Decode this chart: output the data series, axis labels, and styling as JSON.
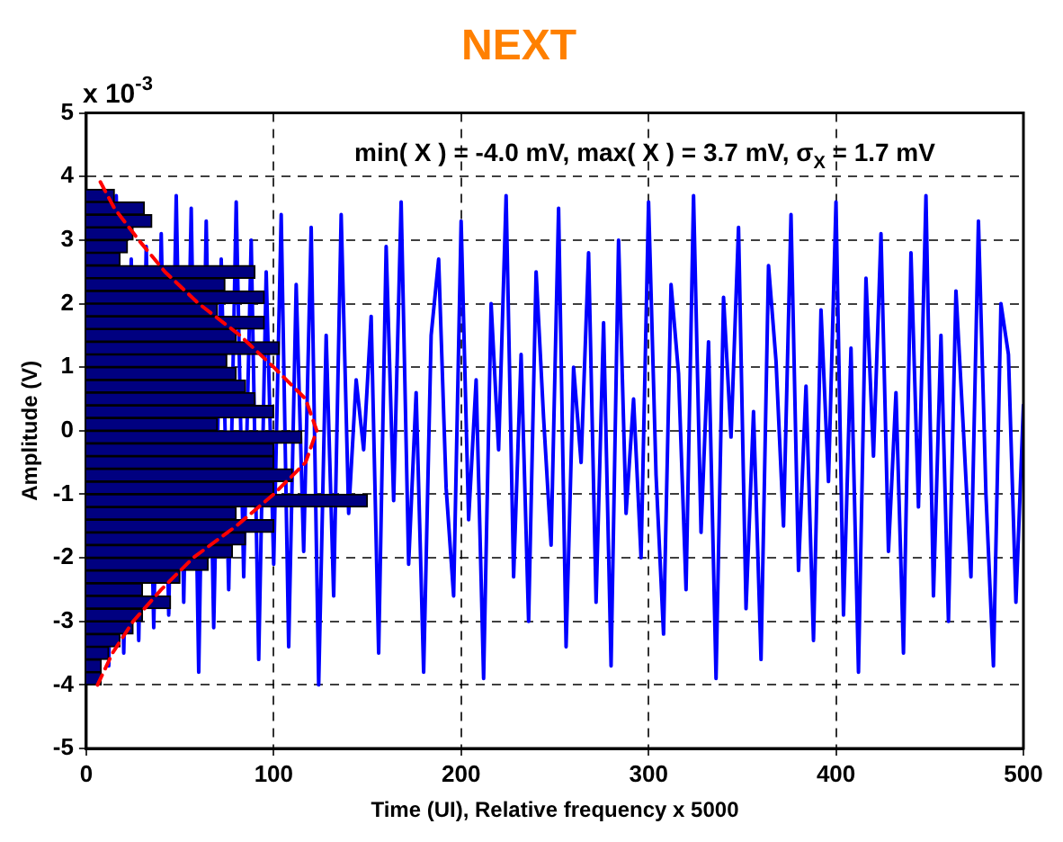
{
  "chart_data": [
    {
      "type": "line",
      "title": "NEXT",
      "xlabel": "Time (UI), Relative frequency x 5000",
      "ylabel": "Amplitude (V)",
      "annotations": [
        "x 10$^{-3}$",
        "min( X ) = -4.0 mV, max( X ) = 3.7 mV, σ$_{X}$ = 1.7 mV"
      ],
      "xlim": [
        0,
        500
      ],
      "xticks": [
        0,
        100,
        200,
        300,
        400,
        500
      ],
      "ylim": [
        -5,
        5
      ],
      "yticks": [
        -5,
        -4,
        -3,
        -2,
        -1,
        0,
        1,
        2,
        3,
        4,
        5
      ],
      "grid": true,
      "marker": "none",
      "series": [
        {
          "color": "#0000ff",
          "x": [
            12,
            16,
            20,
            24,
            28,
            32,
            36,
            40,
            44,
            48,
            52,
            56,
            60,
            64,
            68,
            72,
            76,
            80,
            84,
            88,
            92,
            96,
            100,
            104,
            108,
            112,
            116,
            120,
            124,
            128,
            132,
            136,
            140,
            144,
            148,
            152,
            156,
            160,
            164,
            168,
            172,
            176,
            180,
            184,
            188,
            192,
            196,
            200,
            204,
            208,
            212,
            216,
            220,
            224,
            228,
            232,
            236,
            240,
            244,
            248,
            252,
            256,
            260,
            264,
            268,
            272,
            276,
            280,
            284,
            288,
            292,
            296,
            300,
            304,
            308,
            312,
            316,
            320,
            324,
            328,
            332,
            336,
            340,
            344,
            348,
            352,
            356,
            360,
            364,
            368,
            372,
            376,
            380,
            384,
            388,
            392,
            396,
            400,
            404,
            408,
            412,
            416,
            420,
            424,
            428,
            432,
            436,
            440,
            444,
            448,
            452,
            456,
            460,
            464,
            468,
            472,
            476,
            480,
            484,
            488,
            492,
            496,
            500
          ],
          "values": [
            -3.7,
            3.7,
            -3.5,
            2.7,
            -3.3,
            2.9,
            -3.1,
            3.1,
            -2.9,
            3.7,
            -2.7,
            3.5,
            -3.8,
            3.3,
            -3.1,
            2.7,
            -2.5,
            3.6,
            -2.3,
            3.0,
            -3.6,
            2.5,
            -2.1,
            3.4,
            -3.4,
            2.3,
            -1.9,
            3.2,
            -4.0,
            1.5,
            -2.6,
            3.4,
            -1.3,
            0.8,
            -0.3,
            1.8,
            -3.5,
            2.9,
            -1.1,
            3.6,
            -2.1,
            0.6,
            -3.8,
            1.5,
            2.7,
            -0.9,
            -2.6,
            3.3,
            -1.4,
            0.8,
            -3.9,
            2.0,
            -0.3,
            3.7,
            -2.3,
            1.2,
            -3.0,
            2.5,
            0.2,
            -1.8,
            3.5,
            -3.4,
            1.0,
            -0.5,
            2.8,
            -2.7,
            1.7,
            -3.7,
            3.0,
            -1.3,
            0.5,
            -2.0,
            3.6,
            -0.7,
            -3.2,
            2.3,
            0.9,
            -2.5,
            3.7,
            -1.6,
            1.4,
            -3.9,
            2.1,
            -0.1,
            3.2,
            -2.8,
            0.3,
            -3.6,
            2.6,
            1.1,
            -1.5,
            3.4,
            -2.2,
            0.7,
            -3.3,
            1.9,
            -0.8,
            3.6,
            -2.9,
            1.3,
            -3.8,
            2.4,
            -0.4,
            3.1,
            -1.9,
            0.6,
            -3.5,
            2.8,
            -1.2,
            3.7,
            -2.6,
            1.5,
            -3.0,
            2.2,
            0.0,
            -2.3,
            3.3,
            -1.0,
            -3.7,
            2.0,
            1.2,
            -2.7,
            0.4
          ]
        }
      ]
    },
    {
      "type": "histogram",
      "orientation": "horizontal",
      "color": "#000080",
      "xlim": [
        0,
        500
      ],
      "xticks": [
        0,
        100,
        200,
        300,
        400,
        500
      ],
      "ylim": [
        -5,
        5
      ],
      "yticks": [
        -5,
        -4,
        -3,
        -2,
        -1,
        0,
        1,
        2,
        3,
        4,
        5
      ],
      "tick_labels": false,
      "bins": [
        -4.0,
        -3.8,
        -3.6,
        -3.4,
        -3.2,
        -3.0,
        -2.8,
        -2.6,
        -2.4,
        -2.2,
        -2.0,
        -1.8,
        -1.6,
        -1.4,
        -1.2,
        -1.0,
        -0.8,
        -0.6,
        -0.4,
        -0.2,
        0.0,
        0.2,
        0.4,
        0.6,
        0.8,
        1.0,
        1.2,
        1.4,
        1.6,
        1.8,
        2.0,
        2.2,
        2.4,
        2.6,
        2.8,
        3.0,
        3.2,
        3.4,
        3.6,
        3.8
      ],
      "values": [
        8,
        8,
        12,
        18,
        25,
        30,
        45,
        30,
        50,
        65,
        78,
        85,
        100,
        80,
        150,
        100,
        110,
        100,
        100,
        115,
        70,
        100,
        90,
        85,
        80,
        75,
        103,
        80,
        95,
        70,
        95,
        74,
        90,
        18,
        22,
        25,
        35,
        31,
        15
      ]
    },
    {
      "type": "line",
      "xlim": [
        0,
        500
      ],
      "xticks": [
        0,
        100,
        200,
        300,
        400,
        500
      ],
      "ylim": [
        -5,
        5
      ],
      "yticks": [
        -5,
        -4,
        -3,
        -2,
        -1,
        0,
        1,
        2,
        3,
        4,
        5
      ],
      "tick_labels": false,
      "marker": "none",
      "series": [
        {
          "color": "#ff0000",
          "line_style": "dashed",
          "x": [
            6,
            14,
            25,
            40,
            57,
            80,
            100,
            117,
            123,
            117,
            100,
            82,
            60,
            42,
            28,
            15,
            6
          ],
          "values": [
            -4,
            -3.5,
            -3,
            -2.5,
            -2,
            -1.5,
            -1,
            -0.5,
            0,
            0.5,
            1,
            1.5,
            2,
            2.5,
            3,
            3.5,
            4
          ]
        }
      ]
    }
  ]
}
